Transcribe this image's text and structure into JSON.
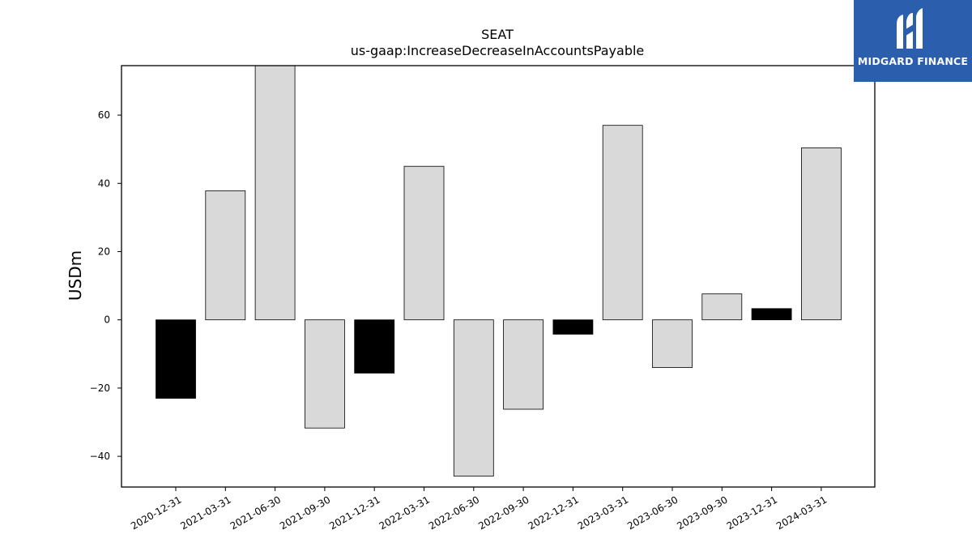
{
  "chart_data": {
    "type": "bar",
    "title": "SEAT",
    "subtitle": "us-gaap:IncreaseDecreaseInAccountsPayable",
    "ylabel": "USDm",
    "xlabel": "",
    "ylim": [
      -49,
      74.5
    ],
    "yticks": [
      -40,
      -20,
      0,
      20,
      40,
      60
    ],
    "grid": false,
    "categories": [
      "2020-12-31",
      "2021-03-31",
      "2021-06-30",
      "2021-09-30",
      "2021-12-31",
      "2022-03-31",
      "2022-06-30",
      "2022-09-30",
      "2022-12-31",
      "2023-03-31",
      "2023-06-30",
      "2023-09-30",
      "2023-12-31",
      "2024-03-31"
    ],
    "values": [
      -23.0,
      37.8,
      75.0,
      -31.7,
      -15.6,
      45.0,
      -45.8,
      -26.2,
      -4.2,
      57.0,
      -14.0,
      7.6,
      3.3,
      50.4
    ],
    "bar_colors": [
      "#000000",
      "#d9d9d9",
      "#d9d9d9",
      "#d9d9d9",
      "#000000",
      "#d9d9d9",
      "#d9d9d9",
      "#d9d9d9",
      "#000000",
      "#d9d9d9",
      "#d9d9d9",
      "#d9d9d9",
      "#000000",
      "#d9d9d9"
    ]
  },
  "logo": {
    "text": "MIDGARD FINANCE",
    "icon": "midgard-m-icon",
    "color": "#2b5ead"
  }
}
